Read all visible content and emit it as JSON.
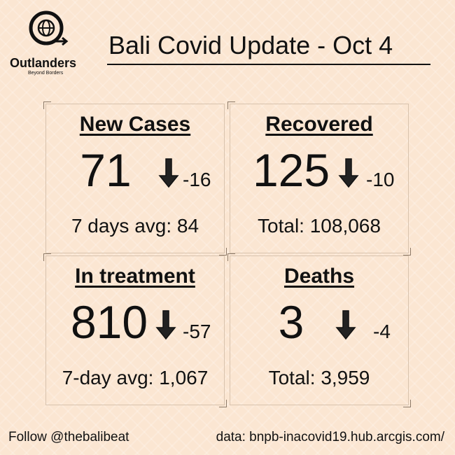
{
  "header": {
    "brand": "Outlanders",
    "tagline": "Beyond Borders",
    "title": "Bali Covid Update - Oct 4"
  },
  "cards": [
    {
      "title": "New Cases",
      "value": "71",
      "change": "-16",
      "note": "7 days avg: 84"
    },
    {
      "title": "Recovered",
      "value": "125",
      "change": "-10",
      "note": "Total: 108,068"
    },
    {
      "title": "In treatment",
      "value": "810",
      "change": "-57",
      "note": "7-day avg: 1,067"
    },
    {
      "title": "Deaths",
      "value": "3",
      "change": "-4",
      "note": "Total: 3,959"
    }
  ],
  "footer": {
    "left": "Follow @thebalibeat",
    "right": "data: bnpb-inacovid19.hub.arcgis.com/"
  }
}
